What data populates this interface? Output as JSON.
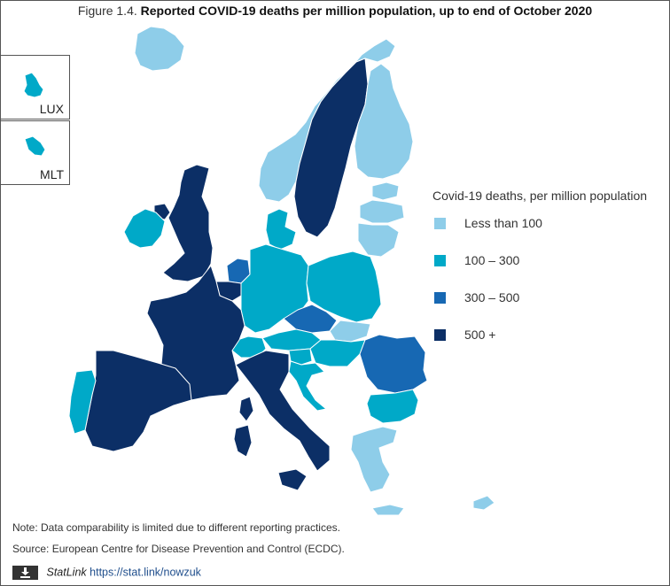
{
  "title": {
    "prefix": "Figure 1.4.",
    "text": "Reported COVID-19 deaths per million population, up to end of October 2020"
  },
  "insets": [
    {
      "label": "LUX",
      "color": "#00a9c8"
    },
    {
      "label": "MLT",
      "color": "#00a9c8"
    }
  ],
  "legend": {
    "title": "Covid-19 deaths, per million population",
    "items": [
      {
        "label": "Less than 100",
        "color": "#8ecde9"
      },
      {
        "label": "100 – 300",
        "color": "#00a9c8"
      },
      {
        "label": "300 – 500",
        "color": "#1768b3"
      },
      {
        "label": "500 +",
        "color": "#0c2f66"
      }
    ]
  },
  "map_data": {
    "categories": [
      "Less than 100",
      "100 – 300",
      "300 – 500",
      "500 +"
    ],
    "regions": [
      {
        "code": "ISL",
        "class": "Less than 100"
      },
      {
        "code": "NOR",
        "class": "Less than 100"
      },
      {
        "code": "FIN",
        "class": "Less than 100"
      },
      {
        "code": "EST",
        "class": "Less than 100"
      },
      {
        "code": "LVA",
        "class": "Less than 100"
      },
      {
        "code": "LTU",
        "class": "Less than 100"
      },
      {
        "code": "SVK",
        "class": "Less than 100"
      },
      {
        "code": "GRC",
        "class": "Less than 100"
      },
      {
        "code": "CYP",
        "class": "Less than 100"
      },
      {
        "code": "DNK",
        "class": "100 – 300"
      },
      {
        "code": "DEU",
        "class": "100 – 300"
      },
      {
        "code": "POL",
        "class": "100 – 300"
      },
      {
        "code": "AUT",
        "class": "100 – 300"
      },
      {
        "code": "HUN",
        "class": "100 – 300"
      },
      {
        "code": "SVN",
        "class": "100 – 300"
      },
      {
        "code": "HRV",
        "class": "100 – 300"
      },
      {
        "code": "BGR",
        "class": "100 – 300"
      },
      {
        "code": "PRT",
        "class": "100 – 300"
      },
      {
        "code": "IRL",
        "class": "100 – 300"
      },
      {
        "code": "CHE",
        "class": "100 – 300"
      },
      {
        "code": "LUX",
        "class": "100 – 300"
      },
      {
        "code": "MLT",
        "class": "100 – 300"
      },
      {
        "code": "NLD",
        "class": "300 – 500"
      },
      {
        "code": "CZE",
        "class": "300 – 500"
      },
      {
        "code": "ROU",
        "class": "300 – 500"
      },
      {
        "code": "SWE",
        "class": "500 +"
      },
      {
        "code": "GBR",
        "class": "500 +"
      },
      {
        "code": "BEL",
        "class": "500 +"
      },
      {
        "code": "FRA",
        "class": "500 +"
      },
      {
        "code": "ESP",
        "class": "500 +"
      },
      {
        "code": "ITA",
        "class": "500 +"
      }
    ]
  },
  "notes": {
    "note": "Note: Data comparability is limited due to different reporting practices.",
    "source": "Source: European Centre for Disease Prevention and Control (ECDC)."
  },
  "statlink": {
    "label": "StatLink",
    "url": "https://stat.link/nowzuk",
    "icon": "download-icon"
  }
}
